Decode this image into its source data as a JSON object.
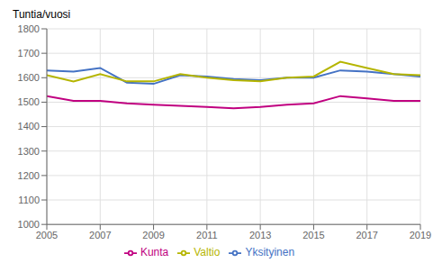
{
  "chart_data": {
    "type": "line",
    "ylabel": "Tuntia/vuosi",
    "x": [
      2005,
      2006,
      2007,
      2008,
      2009,
      2010,
      2011,
      2012,
      2013,
      2014,
      2015,
      2016,
      2017,
      2018,
      2019
    ],
    "series": [
      {
        "name": "Yksityinen",
        "color": "#4472C4",
        "values": [
          1630,
          1625,
          1640,
          1580,
          1575,
          1610,
          1605,
          1595,
          1590,
          1600,
          1600,
          1630,
          1625,
          1615,
          1605
        ]
      },
      {
        "name": "Valtio",
        "color": "#b5b500",
        "values": [
          1610,
          1585,
          1615,
          1585,
          1585,
          1615,
          1600,
          1590,
          1585,
          1600,
          1605,
          1665,
          1640,
          1615,
          1610
        ]
      },
      {
        "name": "Kunta",
        "color": "#c00080",
        "values": [
          1525,
          1505,
          1505,
          1495,
          1490,
          1485,
          1480,
          1475,
          1480,
          1490,
          1495,
          1525,
          1515,
          1505,
          1505
        ]
      }
    ],
    "xlim": [
      2005,
      2019
    ],
    "xticks": [
      2005,
      2007,
      2009,
      2011,
      2013,
      2015,
      2017,
      2019
    ],
    "ylim": [
      1000,
      1800
    ],
    "yticks": [
      1000,
      1100,
      1200,
      1300,
      1400,
      1500,
      1600,
      1700,
      1800
    ],
    "grid": true,
    "legend": "bottom"
  }
}
